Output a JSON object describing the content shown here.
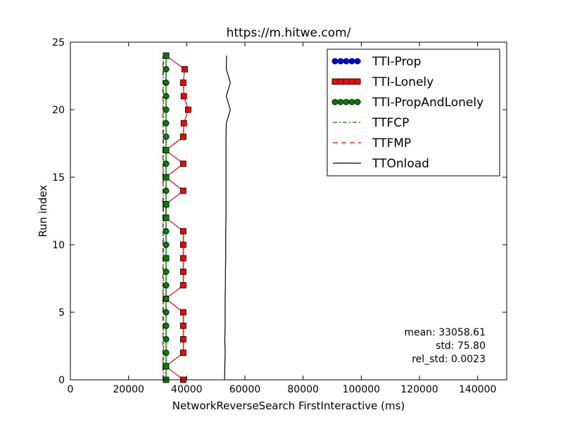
{
  "chart_data": {
    "type": "line",
    "title": "https://m.hitwe.com/",
    "xlabel": "NetworkReverseSearch FirstInteractive (ms)",
    "ylabel": "Run index",
    "xlim": [
      0,
      150000
    ],
    "ylim": [
      0,
      25
    ],
    "xticks": [
      0,
      20000,
      40000,
      60000,
      80000,
      100000,
      120000,
      140000
    ],
    "yticks": [
      0,
      5,
      10,
      15,
      20,
      25
    ],
    "grid": false,
    "legend_position": "top-right",
    "run_index": [
      0,
      1,
      2,
      3,
      4,
      5,
      6,
      7,
      8,
      9,
      10,
      11,
      12,
      13,
      14,
      15,
      16,
      17,
      18,
      19,
      20,
      21,
      22,
      23,
      24
    ],
    "series": [
      {
        "name": "TTI-Prop",
        "style": "line-circle",
        "color": "#0000ff",
        "values": [
          32900,
          32900,
          32900,
          32900,
          32900,
          32900,
          32900,
          32900,
          32900,
          32900,
          32900,
          32900,
          32900,
          32900,
          32900,
          32900,
          32900,
          32900,
          32900,
          32900,
          32900,
          32900,
          32900,
          32900,
          32900
        ]
      },
      {
        "name": "TTI-Lonely",
        "style": "line-square",
        "color": "#ff0000",
        "values": [
          38800,
          32800,
          38800,
          38800,
          38800,
          38800,
          32800,
          38800,
          38800,
          38800,
          38800,
          38800,
          32800,
          32800,
          38800,
          32800,
          38800,
          32800,
          38800,
          39000,
          40500,
          39000,
          38800,
          39300,
          32900
        ]
      },
      {
        "name": "TTI-PropAndLonely",
        "style": "line-pentagon",
        "color": "#008000",
        "values": [
          32900,
          32900,
          32900,
          32900,
          32900,
          32900,
          32900,
          32900,
          32900,
          32900,
          32900,
          32900,
          32900,
          32900,
          32900,
          32900,
          32900,
          32900,
          32900,
          32900,
          32900,
          32900,
          32900,
          32900,
          32900
        ]
      },
      {
        "name": "TTFCP",
        "style": "dashdot",
        "color": "#008000",
        "values": [
          32000,
          32000,
          32000,
          32000,
          32000,
          32000,
          32000,
          32000,
          32000,
          32000,
          32000,
          32000,
          32000,
          32000,
          32000,
          32000,
          32000,
          32000,
          32000,
          32000,
          32000,
          32000,
          32000,
          32000,
          32000
        ]
      },
      {
        "name": "TTFMP",
        "style": "dashed",
        "color": "#ff0000",
        "values": [
          31800,
          31800,
          31800,
          31800,
          31800,
          31800,
          31800,
          31800,
          31800,
          31800,
          31800,
          31800,
          31800,
          31800,
          31800,
          31800,
          31800,
          31800,
          31800,
          31800,
          31800,
          31800,
          31800,
          31800,
          31800
        ]
      },
      {
        "name": "TTOnload",
        "style": "solid",
        "color": "#000000",
        "values": [
          53000,
          53100,
          53200,
          53100,
          53200,
          53200,
          53200,
          53300,
          53300,
          53400,
          53400,
          53400,
          53500,
          53500,
          53500,
          53500,
          53500,
          53500,
          53500,
          53600,
          55000,
          53600,
          55000,
          53600,
          53700
        ]
      }
    ],
    "annotation": {
      "lines": [
        "mean: 33058.61",
        "std: 75.80",
        "rel_std: 0.0023"
      ],
      "position": "bottom-right"
    }
  }
}
